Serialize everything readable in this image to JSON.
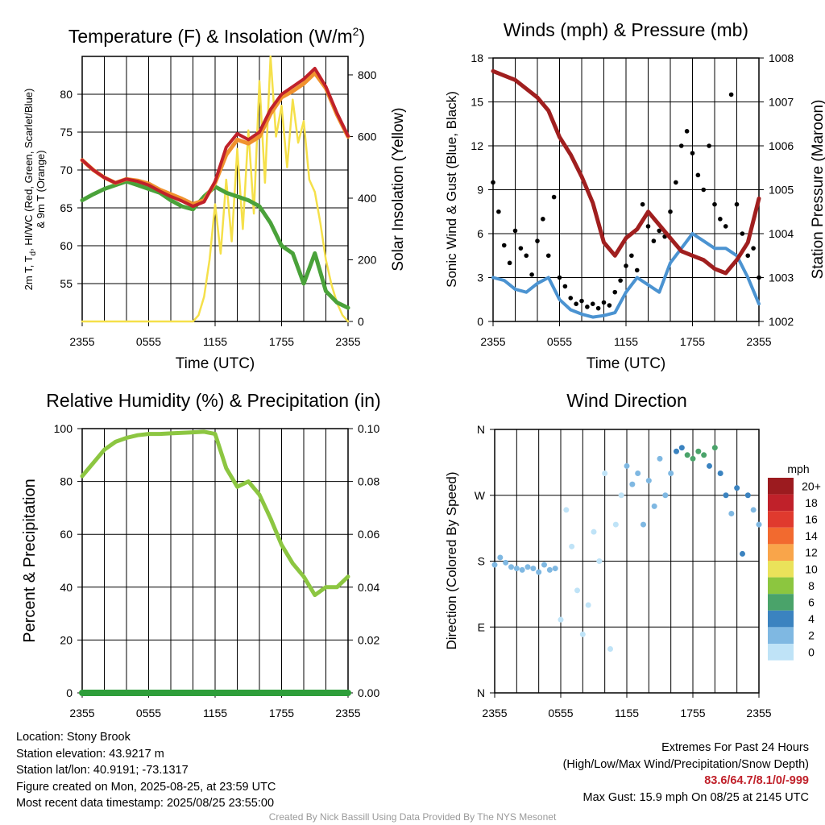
{
  "chart_data": [
    {
      "type": "line",
      "title": "Temperature (F) & Insolation (W/m",
      "title_superscript": "2",
      "title_close": ")",
      "xlabel": "Time (UTC)",
      "ylabel_line1": "2m T, T",
      "ylabel_sub": "d",
      "ylabel_line1_rest": ", HI/WC (Red, Green, Scarlet/Blue)",
      "ylabel_line2": "& 9m T (Orange)",
      "ylabel_right": "Solar Insolation (Yellow)",
      "xlim": [
        0,
        24
      ],
      "x_ticks": [
        0,
        6,
        12,
        18,
        24
      ],
      "x_tick_labels": [
        "2355",
        "0555",
        "1155",
        "1755",
        "2355"
      ],
      "ylim": [
        50,
        85
      ],
      "y_ticks": [
        55,
        60,
        65,
        70,
        75,
        80
      ],
      "ylim_right": [
        0,
        860
      ],
      "y_ticks_right": [
        0,
        200,
        400,
        600,
        800
      ],
      "grid": true,
      "colors": {
        "temp": "#c0212a",
        "temp9m": "#f0922e",
        "dew": "#4aa23a",
        "solar": "#f5e04a"
      },
      "series": [
        {
          "key": "temp",
          "x": [
            0,
            1,
            2,
            3,
            4,
            5,
            6,
            7,
            8,
            9,
            10,
            11,
            12,
            13,
            14,
            15,
            16,
            17,
            18,
            19,
            20,
            21,
            22,
            23,
            24
          ],
          "values": [
            71.3,
            70.0,
            69.0,
            68.3,
            68.8,
            68.5,
            68.0,
            67.2,
            66.5,
            65.9,
            65.2,
            65.8,
            68.5,
            73.0,
            74.8,
            74.0,
            75.0,
            78.0,
            80.0,
            81.0,
            82.0,
            83.4,
            81.0,
            77.5,
            74.5
          ]
        },
        {
          "key": "temp9m",
          "x": [
            0,
            1,
            2,
            3,
            4,
            5,
            6,
            7,
            8,
            9,
            10,
            11,
            12,
            13,
            14,
            15,
            16,
            17,
            18,
            19,
            20,
            21,
            22,
            23,
            24
          ],
          "values": [
            71.3,
            70.0,
            69.0,
            68.3,
            68.8,
            68.6,
            68.2,
            67.4,
            66.8,
            66.2,
            65.5,
            66.0,
            68.3,
            72.0,
            74.0,
            73.5,
            74.4,
            77.4,
            79.6,
            80.4,
            81.4,
            82.8,
            80.8,
            77.3,
            74.4
          ]
        },
        {
          "key": "dew",
          "x": [
            0,
            1,
            2,
            3,
            4,
            5,
            6,
            7,
            8,
            9,
            10,
            11,
            12,
            13,
            14,
            15,
            16,
            17,
            18,
            19,
            20,
            21,
            22,
            23,
            24
          ],
          "values": [
            66.0,
            66.8,
            67.5,
            68.0,
            68.5,
            68.0,
            67.5,
            67.0,
            66.0,
            65.2,
            64.8,
            66.5,
            67.8,
            67.0,
            66.5,
            66.0,
            65.2,
            63.0,
            60.0,
            59.0,
            55.0,
            59.0,
            54.0,
            52.5,
            51.8
          ]
        },
        {
          "key": "solar",
          "x": [
            0,
            1,
            2,
            3,
            4,
            5,
            6,
            7,
            8,
            9,
            10,
            10.5,
            11,
            11.5,
            12,
            12.5,
            13,
            13.5,
            14,
            14.5,
            15,
            15.5,
            16,
            16.5,
            17,
            17.5,
            18,
            18.5,
            19,
            19.5,
            20,
            20.5,
            21,
            21.5,
            22,
            22.5,
            23,
            23.5,
            24
          ],
          "values": [
            0,
            0,
            0,
            0,
            0,
            0,
            0,
            0,
            0,
            0,
            0,
            20,
            80,
            200,
            380,
            220,
            460,
            260,
            560,
            300,
            620,
            350,
            780,
            450,
            860,
            600,
            700,
            500,
            720,
            580,
            650,
            460,
            420,
            320,
            200,
            120,
            60,
            20,
            0
          ]
        }
      ]
    },
    {
      "type": "scatter",
      "title": "Winds (mph) & Pressure (mb)",
      "xlabel": "Time (UTC)",
      "ylabel": "Sonic Wind & Gust (Blue, Black)",
      "ylabel_right": "Station Pressure (Maroon)",
      "xlim": [
        0,
        24
      ],
      "x_ticks": [
        0,
        6,
        12,
        18,
        24
      ],
      "x_tick_labels": [
        "2355",
        "0555",
        "1155",
        "1755",
        "2355"
      ],
      "ylim": [
        0,
        18
      ],
      "y_ticks": [
        0,
        3,
        6,
        9,
        12,
        15,
        18
      ],
      "ylim_right": [
        1002,
        1008
      ],
      "y_ticks_right": [
        1002,
        1003,
        1004,
        1005,
        1006,
        1007,
        1008
      ],
      "grid": true,
      "colors": {
        "wind": "#4b93d1",
        "gust": "#000000",
        "pressure": "#a01f1f"
      },
      "series": [
        {
          "key": "wind",
          "x": [
            0,
            1,
            2,
            3,
            4,
            5,
            6,
            7,
            8,
            9,
            10,
            11,
            12,
            13,
            14,
            15,
            16,
            17,
            18,
            19,
            20,
            21,
            22,
            23,
            24
          ],
          "values": [
            3.0,
            2.8,
            2.2,
            2.0,
            2.6,
            3.0,
            1.5,
            0.8,
            0.5,
            0.3,
            0.4,
            0.6,
            2.0,
            3.0,
            2.5,
            2.0,
            4.0,
            5.0,
            6.0,
            5.5,
            5.0,
            5.0,
            4.5,
            3.0,
            1.2
          ]
        },
        {
          "key": "gust",
          "x": [
            0,
            0.5,
            1,
            1.5,
            2,
            2.5,
            3,
            3.5,
            4,
            4.5,
            5,
            5.5,
            6,
            6.5,
            7,
            7.5,
            8,
            8.5,
            9,
            9.5,
            10,
            10.5,
            11,
            11.5,
            12,
            12.5,
            13,
            13.5,
            14,
            14.5,
            15,
            15.5,
            16,
            16.5,
            17,
            17.5,
            18,
            18.5,
            19,
            19.5,
            20,
            20.5,
            21,
            21.5,
            22,
            22.5,
            23,
            23.5,
            24
          ],
          "values": [
            9.5,
            7.5,
            5.2,
            4.0,
            6.2,
            5.0,
            4.5,
            3.2,
            5.5,
            7.0,
            4.5,
            8.5,
            3.0,
            2.4,
            1.6,
            1.2,
            1.4,
            1.0,
            1.2,
            0.9,
            1.3,
            1.1,
            2.0,
            2.8,
            3.8,
            4.5,
            3.5,
            8.0,
            6.5,
            5.5,
            6.2,
            5.8,
            7.5,
            9.5,
            12.0,
            13.0,
            11.5,
            10.0,
            9.0,
            12.0,
            8.0,
            7.0,
            6.5,
            15.5,
            8.0,
            6.0,
            4.5,
            5.0,
            3.0
          ]
        },
        {
          "key": "pressure",
          "x": [
            0,
            1,
            2,
            3,
            4,
            5,
            6,
            7,
            8,
            9,
            10,
            11,
            12,
            13,
            14,
            15,
            16,
            17,
            18,
            19,
            20,
            21,
            22,
            23,
            24
          ],
          "values": [
            1007.7,
            1007.6,
            1007.5,
            1007.3,
            1007.1,
            1006.8,
            1006.2,
            1005.8,
            1005.3,
            1004.7,
            1003.8,
            1003.5,
            1003.9,
            1004.1,
            1004.5,
            1004.2,
            1003.9,
            1003.6,
            1003.5,
            1003.4,
            1003.2,
            1003.1,
            1003.4,
            1003.8,
            1004.8
          ]
        }
      ]
    },
    {
      "type": "line",
      "title": "Relative Humidity (%) & Precipitation (in)",
      "ylabel": "Percent & Precipitation",
      "xlim": [
        0,
        24
      ],
      "x_ticks": [
        0,
        6,
        12,
        18,
        24
      ],
      "x_tick_labels": [
        "2355",
        "0555",
        "1155",
        "1755",
        "2355"
      ],
      "ylim": [
        0,
        100
      ],
      "y_ticks": [
        0,
        20,
        40,
        60,
        80,
        100
      ],
      "ylim_right": [
        0,
        0.1
      ],
      "y_ticks_right": [
        0,
        0.02,
        0.04,
        0.06,
        0.08,
        0.1
      ],
      "y_tick_labels_right": [
        "0.00",
        "0.02",
        "0.04",
        "0.06",
        "0.08",
        "0.10"
      ],
      "grid": true,
      "colors": {
        "rh": "#8cc641",
        "precip": "#2e9e3a"
      },
      "series": [
        {
          "key": "rh",
          "x": [
            0,
            1,
            2,
            3,
            4,
            5,
            6,
            7,
            8,
            9,
            10,
            11,
            12,
            13,
            14,
            15,
            16,
            17,
            18,
            19,
            20,
            21,
            22,
            23,
            24
          ],
          "values": [
            82.0,
            87.0,
            92.0,
            95.0,
            96.5,
            97.5,
            98.0,
            98.0,
            98.2,
            98.4,
            98.6,
            98.8,
            98.0,
            85.0,
            78.0,
            80.0,
            75.0,
            66.0,
            56.0,
            49.0,
            44.0,
            37.0,
            40.0,
            40.0,
            44.0
          ]
        },
        {
          "key": "precip",
          "x": [
            0,
            24
          ],
          "values": [
            0,
            0
          ]
        }
      ]
    },
    {
      "type": "scatter",
      "title": "Wind Direction",
      "ylabel": "Direction (Colored By Speed)",
      "xlim": [
        0,
        24
      ],
      "x_ticks": [
        0,
        6,
        12,
        18,
        24
      ],
      "x_tick_labels": [
        "2355",
        "0555",
        "1155",
        "1755",
        "2355"
      ],
      "ylim": [
        0,
        360
      ],
      "y_ticks": [
        0,
        90,
        180,
        270,
        360
      ],
      "y_tick_labels": [
        "N",
        "E",
        "S",
        "W",
        "N"
      ],
      "grid": true,
      "legend_title": "mph",
      "legend_labels": [
        "20+",
        "18",
        "16",
        "14",
        "12",
        "10",
        "8",
        "6",
        "4",
        "2",
        "0"
      ],
      "legend_colors": [
        "#9c1b1f",
        "#c0212a",
        "#e03a2e",
        "#f26a2f",
        "#f9a54a",
        "#eae25a",
        "#8cc63f",
        "#4aa36a",
        "#3b83c0",
        "#7fb8e2",
        "#bfe3f7"
      ],
      "series": [
        {
          "key": "direction",
          "x": [
            0,
            0.5,
            1,
            1.5,
            2,
            2.5,
            3,
            3.5,
            4,
            4.5,
            5,
            5.5,
            6,
            6.5,
            7,
            7.5,
            8,
            8.5,
            9,
            9.5,
            10,
            10.5,
            11,
            11.5,
            12,
            12.5,
            13,
            13.5,
            14,
            14.5,
            15,
            15.5,
            16,
            16.5,
            17,
            17.5,
            18,
            18.5,
            19,
            19.5,
            20,
            20.5,
            21,
            21.5,
            22,
            22.5,
            23,
            23.5,
            24
          ],
          "values": [
            175,
            185,
            178,
            172,
            170,
            168,
            172,
            170,
            165,
            175,
            168,
            170,
            100,
            250,
            200,
            140,
            80,
            120,
            220,
            180,
            300,
            60,
            230,
            270,
            310,
            285,
            300,
            230,
            290,
            255,
            320,
            270,
            300,
            330,
            335,
            325,
            320,
            330,
            325,
            310,
            335,
            300,
            270,
            245,
            280,
            190,
            270,
            250,
            230
          ],
          "speeds": [
            3,
            3,
            3,
            3,
            3,
            3,
            3,
            3,
            3,
            3,
            3,
            3,
            1,
            1,
            1,
            1,
            1,
            1,
            1,
            1,
            1,
            1,
            1,
            1,
            2,
            2,
            2,
            2,
            3,
            3,
            3,
            2,
            3,
            4,
            5,
            6,
            6,
            7,
            6,
            5,
            7,
            5,
            4,
            3,
            5,
            4,
            4,
            3,
            2
          ]
        }
      ]
    }
  ],
  "info": {
    "location": "Location: Stony Brook",
    "elevation": "Station elevation: 43.9217 m",
    "latlon": "Station lat/lon: 40.9191; -73.1317",
    "created": "Figure created on Mon, 2025-08-25, at 23:59 UTC",
    "recent": "Most recent data timestamp: 2025/08/25 23:55:00"
  },
  "extremes": {
    "heading": "Extremes For Past 24 Hours",
    "subheading": "(High/Low/Max Wind/Precipitation/Snow Depth)",
    "values": "83.6/64.7/8.1/0/-999",
    "max_gust": "Max Gust: 15.9 mph On 08/25 at 2145 UTC"
  },
  "credit": "Created By Nick Bassill Using Data Provided By The NYS Mesonet"
}
